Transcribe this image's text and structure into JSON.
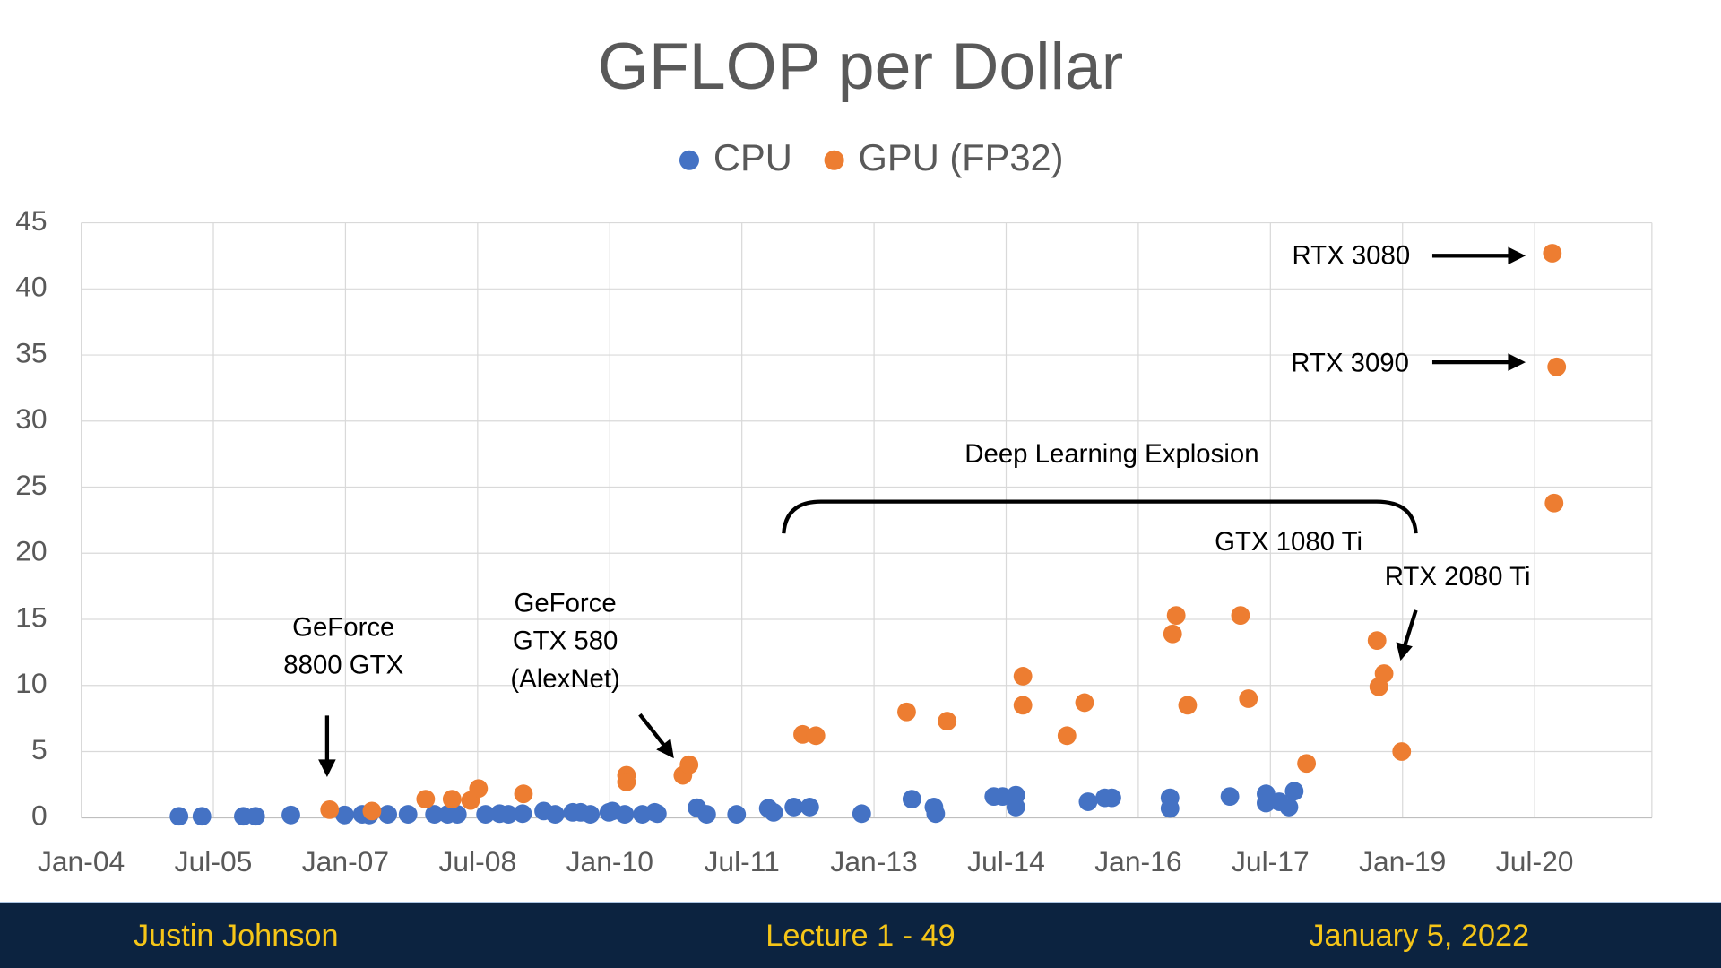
{
  "chart_data": {
    "type": "scatter",
    "title": "GFLOP per Dollar",
    "xlim": [
      2004,
      2021.83
    ],
    "xticks": [
      {
        "value": 2004,
        "label": "Jan-04"
      },
      {
        "value": 2005.5,
        "label": "Jul-05"
      },
      {
        "value": 2007,
        "label": "Jan-07"
      },
      {
        "value": 2008.5,
        "label": "Jul-08"
      },
      {
        "value": 2010,
        "label": "Jan-10"
      },
      {
        "value": 2011.5,
        "label": "Jul-11"
      },
      {
        "value": 2013,
        "label": "Jan-13"
      },
      {
        "value": 2014.5,
        "label": "Jul-14"
      },
      {
        "value": 2016,
        "label": "Jan-16"
      },
      {
        "value": 2017.5,
        "label": "Jul-17"
      },
      {
        "value": 2019,
        "label": "Jan-19"
      },
      {
        "value": 2020.5,
        "label": "Jul-20"
      }
    ],
    "ylim": [
      0,
      45
    ],
    "yticks": [
      0,
      5,
      10,
      15,
      20,
      25,
      30,
      35,
      40,
      45
    ],
    "grid": true,
    "legend": "top",
    "series": [
      {
        "name": "CPU",
        "color": "#4472c4",
        "x": [
          2005.11,
          2005.37,
          2005.84,
          2005.98,
          2006.38,
          2006.99,
          2007.19,
          2007.27,
          2007.48,
          2007.71,
          2008.01,
          2008.16,
          2008.27,
          2008.59,
          2008.75,
          2008.85,
          2009.01,
          2009.25,
          2009.38,
          2009.58,
          2009.67,
          2009.78,
          2009.99,
          2010.03,
          2010.17,
          2010.37,
          2010.51,
          2010.54,
          2010.99,
          2011.1,
          2011.44,
          2011.8,
          2011.86,
          2012.09,
          2012.27,
          2012.86,
          2013.43,
          2013.68,
          2013.7,
          2014.36,
          2014.46,
          2014.61,
          2014.61,
          2015.43,
          2015.62,
          2015.7,
          2016.36,
          2016.36,
          2017.04,
          2017.45,
          2017.45,
          2017.6,
          2017.71,
          2017.77
        ],
        "values": [
          0.1,
          0.1,
          0.1,
          0.1,
          0.2,
          0.2,
          0.25,
          0.2,
          0.25,
          0.25,
          0.25,
          0.25,
          0.25,
          0.25,
          0.3,
          0.25,
          0.3,
          0.5,
          0.25,
          0.4,
          0.4,
          0.25,
          0.4,
          0.5,
          0.25,
          0.25,
          0.4,
          0.3,
          0.75,
          0.25,
          0.25,
          0.7,
          0.4,
          0.8,
          0.8,
          0.3,
          1.4,
          0.8,
          0.3,
          1.6,
          1.6,
          1.7,
          0.8,
          1.2,
          1.5,
          1.5,
          1.5,
          0.7,
          1.6,
          1.8,
          1.1,
          1.2,
          0.8,
          2.0
        ]
      },
      {
        "name": "GPU (FP32)",
        "color": "#ed7d31",
        "x": [
          2006.82,
          2007.3,
          2007.91,
          2008.21,
          2008.42,
          2008.51,
          2009.02,
          2010.19,
          2010.19,
          2010.83,
          2010.9,
          2012.19,
          2012.34,
          2013.37,
          2013.83,
          2014.69,
          2014.69,
          2015.19,
          2015.39,
          2016.39,
          2016.43,
          2016.56,
          2017.16,
          2017.25,
          2017.91,
          2018.71,
          2018.73,
          2018.79,
          2018.99,
          2020.7,
          2020.75,
          2020.72
        ],
        "values": [
          0.6,
          0.5,
          1.4,
          1.4,
          1.3,
          2.2,
          1.8,
          3.2,
          2.7,
          3.2,
          4.0,
          6.3,
          6.2,
          8.0,
          7.3,
          10.7,
          8.5,
          6.2,
          8.7,
          13.9,
          15.3,
          8.5,
          15.3,
          9.0,
          4.1,
          13.4,
          9.9,
          10.9,
          5.0,
          42.7,
          34.1,
          23.8
        ]
      }
    ],
    "annotations": [
      {
        "lines": [
          "GeForce",
          "8800 GTX"
        ]
      },
      {
        "lines": [
          "GeForce",
          "GTX 580",
          "(AlexNet)"
        ]
      },
      {
        "lines": [
          "Deep Learning Explosion"
        ]
      },
      {
        "lines": [
          "GTX 1080 Ti"
        ]
      },
      {
        "lines": [
          "RTX 2080 Ti"
        ]
      },
      {
        "lines": [
          "RTX 3080"
        ]
      },
      {
        "lines": [
          "RTX 3090"
        ]
      }
    ]
  },
  "footer": {
    "left": "Justin Johnson",
    "center": "Lecture 1 - 49",
    "right": "January 5, 2022"
  }
}
